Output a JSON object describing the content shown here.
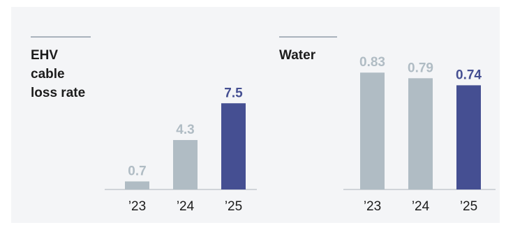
{
  "colors": {
    "past": "#b0bcc4",
    "current": "#454f92",
    "past_label": "#b0bcc4",
    "current_label": "#454f92",
    "rule": "#a9b2bc",
    "baseline": "#c4c9cf"
  },
  "chart_data": [
    {
      "type": "bar",
      "title": "",
      "label_lines": [
        "EHV",
        "cable",
        "loss rate"
      ],
      "categories": [
        "’23",
        "’24",
        "’25"
      ],
      "values": [
        0.7,
        4.3,
        7.5
      ],
      "value_labels": [
        "0.7",
        "4.3",
        "7.5"
      ],
      "highlight_index": 2,
      "ylim": [
        0,
        10
      ],
      "grid": false,
      "legend": "none"
    },
    {
      "type": "bar",
      "title": "",
      "label_lines": [
        "Water"
      ],
      "categories": [
        "’23",
        "’24",
        "’25"
      ],
      "values": [
        0.83,
        0.79,
        0.74
      ],
      "value_labels": [
        "0.83",
        "0.79",
        "0.74"
      ],
      "highlight_index": 2,
      "ylim": [
        0,
        0.94
      ],
      "grid": false,
      "legend": "none"
    }
  ]
}
